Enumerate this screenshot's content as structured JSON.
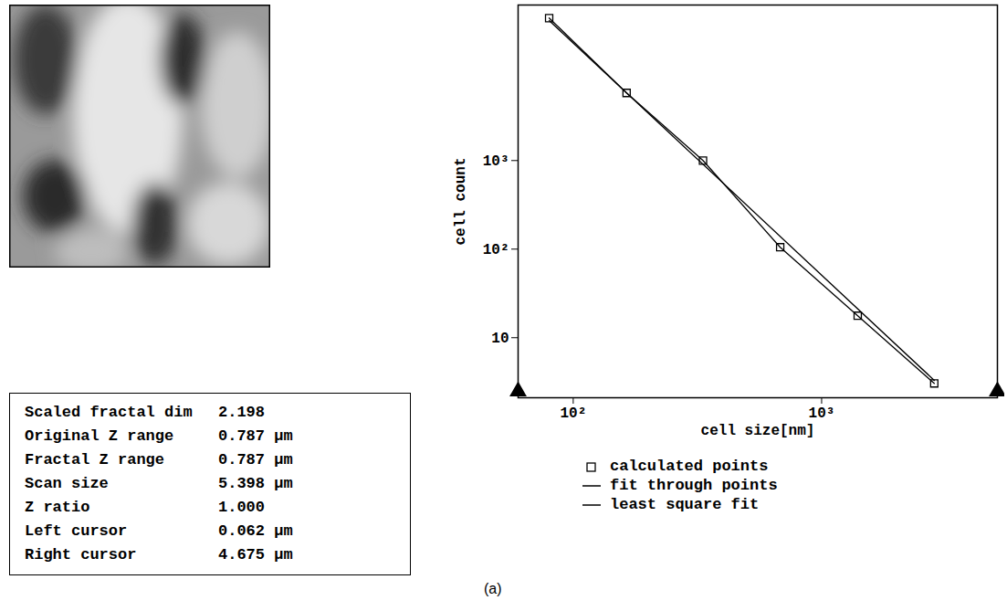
{
  "chart_data": {
    "type": "line",
    "log": true,
    "x_label": "cell size[nm]",
    "y_label": "cell count",
    "xlim": [
      60,
      5100
    ],
    "ylim": [
      2.1,
      57000
    ],
    "xticks": [
      {
        "value": 100,
        "label": "10²"
      },
      {
        "value": 1000,
        "label": "10³"
      }
    ],
    "yticks": [
      10,
      {
        "value": 100,
        "label": "10²"
      },
      {
        "value": 1000,
        "label": "10³"
      }
    ],
    "grid": false,
    "legend": "bottom",
    "series": [
      {
        "name": "calculated points",
        "type": "scatter",
        "marker": "square",
        "color": "#000000",
        "x": [
          80,
          164,
          333,
          681,
          1397,
          2840
        ],
        "values": [
          40600,
          5800,
          1000,
          105,
          17.7,
          3.05
        ]
      },
      {
        "name": "fit through points",
        "type": "line",
        "line_style": "solid",
        "color": "#000000",
        "x": [
          80,
          164,
          333,
          681,
          1397,
          2840
        ],
        "values": [
          40600,
          5800,
          1000,
          105,
          17.7,
          3.05
        ]
      },
      {
        "name": "least square fit",
        "type": "line",
        "line_style": "solid",
        "color": "#000000",
        "x": [
          80,
          2840
        ],
        "values": [
          38000,
          3.3
        ]
      }
    ]
  },
  "info_table": {
    "rows": [
      [
        "Scaled fractal dim",
        "2.198"
      ],
      [
        "Original Z range",
        "0.787 µm"
      ],
      [
        "Fractal Z range",
        "0.787 µm"
      ],
      [
        "Scan size",
        "5.398 µm"
      ],
      [
        "Z ratio",
        "1.000"
      ],
      [
        "Left cursor",
        "0.062 µm"
      ],
      [
        "Right cursor",
        "4.675 µm"
      ]
    ]
  },
  "caption": "(a)"
}
